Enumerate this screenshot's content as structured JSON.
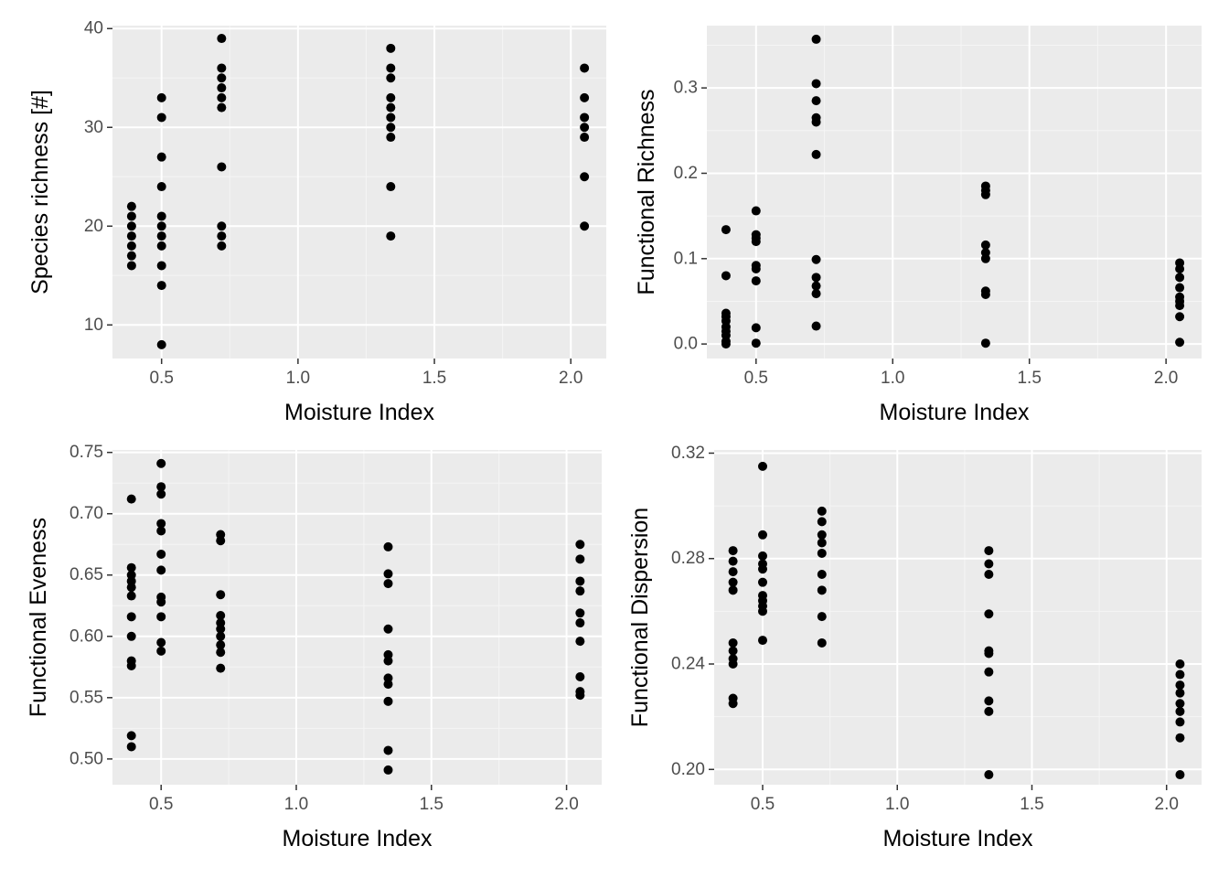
{
  "chart_data": [
    {
      "type": "scatter",
      "xlabel": "Moisture Index",
      "ylabel": "Species richness [#]",
      "xlim": [
        0.32,
        2.13
      ],
      "ylim": [
        6.6,
        40.3
      ],
      "x_ticks": [
        0.5,
        1.0,
        1.5,
        2.0
      ],
      "x_tick_labels": [
        "0.5",
        "1.0",
        "1.5",
        "2.0"
      ],
      "y_ticks": [
        10,
        20,
        30,
        40
      ],
      "y_tick_labels": [
        "10",
        "20",
        "30",
        "40"
      ],
      "grid": true,
      "points": [
        [
          0.39,
          22
        ],
        [
          0.39,
          21
        ],
        [
          0.39,
          20
        ],
        [
          0.39,
          19
        ],
        [
          0.39,
          18
        ],
        [
          0.39,
          17
        ],
        [
          0.39,
          16
        ],
        [
          0.5,
          33
        ],
        [
          0.5,
          31
        ],
        [
          0.5,
          27
        ],
        [
          0.5,
          24
        ],
        [
          0.5,
          21
        ],
        [
          0.5,
          20
        ],
        [
          0.5,
          19
        ],
        [
          0.5,
          18
        ],
        [
          0.5,
          16
        ],
        [
          0.5,
          14
        ],
        [
          0.5,
          8
        ],
        [
          0.72,
          39
        ],
        [
          0.72,
          36
        ],
        [
          0.72,
          35
        ],
        [
          0.72,
          34
        ],
        [
          0.72,
          33
        ],
        [
          0.72,
          32
        ],
        [
          0.72,
          26
        ],
        [
          0.72,
          20
        ],
        [
          0.72,
          19
        ],
        [
          0.72,
          18
        ],
        [
          1.34,
          38
        ],
        [
          1.34,
          36
        ],
        [
          1.34,
          35
        ],
        [
          1.34,
          33
        ],
        [
          1.34,
          32
        ],
        [
          1.34,
          31
        ],
        [
          1.34,
          30
        ],
        [
          1.34,
          29
        ],
        [
          1.34,
          24
        ],
        [
          1.34,
          19
        ],
        [
          2.05,
          36
        ],
        [
          2.05,
          33
        ],
        [
          2.05,
          31
        ],
        [
          2.05,
          30
        ],
        [
          2.05,
          29
        ],
        [
          2.05,
          25
        ],
        [
          2.05,
          20
        ]
      ]
    },
    {
      "type": "scatter",
      "xlabel": "Moisture Index",
      "ylabel": "Functional Richness",
      "xlim": [
        0.32,
        2.13
      ],
      "ylim": [
        -0.017,
        0.373
      ],
      "x_ticks": [
        0.5,
        1.0,
        1.5,
        2.0
      ],
      "x_tick_labels": [
        "0.5",
        "1.0",
        "1.5",
        "2.0"
      ],
      "y_ticks": [
        0.0,
        0.1,
        0.2,
        0.3
      ],
      "y_tick_labels": [
        "0.0",
        "0.1",
        "0.2",
        "0.3"
      ],
      "grid": true,
      "points": [
        [
          0.39,
          0.134
        ],
        [
          0.39,
          0.08
        ],
        [
          0.39,
          0.036
        ],
        [
          0.39,
          0.032
        ],
        [
          0.39,
          0.027
        ],
        [
          0.39,
          0.02
        ],
        [
          0.39,
          0.015
        ],
        [
          0.39,
          0.01
        ],
        [
          0.39,
          0.003
        ],
        [
          0.39,
          0.0
        ],
        [
          0.5,
          0.156
        ],
        [
          0.5,
          0.128
        ],
        [
          0.5,
          0.124
        ],
        [
          0.5,
          0.12
        ],
        [
          0.5,
          0.092
        ],
        [
          0.5,
          0.088
        ],
        [
          0.5,
          0.074
        ],
        [
          0.5,
          0.019
        ],
        [
          0.5,
          0.001
        ],
        [
          0.72,
          0.357
        ],
        [
          0.72,
          0.305
        ],
        [
          0.72,
          0.285
        ],
        [
          0.72,
          0.265
        ],
        [
          0.72,
          0.26
        ],
        [
          0.72,
          0.222
        ],
        [
          0.72,
          0.099
        ],
        [
          0.72,
          0.078
        ],
        [
          0.72,
          0.068
        ],
        [
          0.72,
          0.059
        ],
        [
          0.72,
          0.021
        ],
        [
          1.34,
          0.185
        ],
        [
          1.34,
          0.18
        ],
        [
          1.34,
          0.175
        ],
        [
          1.34,
          0.116
        ],
        [
          1.34,
          0.107
        ],
        [
          1.34,
          0.1
        ],
        [
          1.34,
          0.062
        ],
        [
          1.34,
          0.058
        ],
        [
          1.34,
          0.001
        ],
        [
          2.05,
          0.095
        ],
        [
          2.05,
          0.088
        ],
        [
          2.05,
          0.078
        ],
        [
          2.05,
          0.066
        ],
        [
          2.05,
          0.055
        ],
        [
          2.05,
          0.05
        ],
        [
          2.05,
          0.045
        ],
        [
          2.05,
          0.032
        ],
        [
          2.05,
          0.002
        ]
      ]
    },
    {
      "type": "scatter",
      "xlabel": "Moisture Index",
      "ylabel": "Functional Eveness",
      "xlim": [
        0.32,
        2.13
      ],
      "ylim": [
        0.479,
        0.752
      ],
      "x_ticks": [
        0.5,
        1.0,
        1.5,
        2.0
      ],
      "x_tick_labels": [
        "0.5",
        "1.0",
        "1.5",
        "2.0"
      ],
      "y_ticks": [
        0.5,
        0.55,
        0.6,
        0.65,
        0.7,
        0.75
      ],
      "y_tick_labels": [
        "0.50",
        "0.55",
        "0.60",
        "0.65",
        "0.70",
        "0.75"
      ],
      "grid": true,
      "points": [
        [
          0.39,
          0.712
        ],
        [
          0.39,
          0.656
        ],
        [
          0.39,
          0.65
        ],
        [
          0.39,
          0.645
        ],
        [
          0.39,
          0.64
        ],
        [
          0.39,
          0.633
        ],
        [
          0.39,
          0.616
        ],
        [
          0.39,
          0.6
        ],
        [
          0.39,
          0.58
        ],
        [
          0.39,
          0.576
        ],
        [
          0.39,
          0.519
        ],
        [
          0.39,
          0.51
        ],
        [
          0.5,
          0.741
        ],
        [
          0.5,
          0.722
        ],
        [
          0.5,
          0.716
        ],
        [
          0.5,
          0.692
        ],
        [
          0.5,
          0.686
        ],
        [
          0.5,
          0.667
        ],
        [
          0.5,
          0.654
        ],
        [
          0.5,
          0.632
        ],
        [
          0.5,
          0.628
        ],
        [
          0.5,
          0.616
        ],
        [
          0.5,
          0.595
        ],
        [
          0.5,
          0.588
        ],
        [
          0.72,
          0.683
        ],
        [
          0.72,
          0.678
        ],
        [
          0.72,
          0.634
        ],
        [
          0.72,
          0.617
        ],
        [
          0.72,
          0.611
        ],
        [
          0.72,
          0.606
        ],
        [
          0.72,
          0.6
        ],
        [
          0.72,
          0.593
        ],
        [
          0.72,
          0.587
        ],
        [
          0.72,
          0.574
        ],
        [
          1.34,
          0.673
        ],
        [
          1.34,
          0.651
        ],
        [
          1.34,
          0.643
        ],
        [
          1.34,
          0.606
        ],
        [
          1.34,
          0.585
        ],
        [
          1.34,
          0.58
        ],
        [
          1.34,
          0.566
        ],
        [
          1.34,
          0.561
        ],
        [
          1.34,
          0.547
        ],
        [
          1.34,
          0.507
        ],
        [
          1.34,
          0.491
        ],
        [
          2.05,
          0.675
        ],
        [
          2.05,
          0.663
        ],
        [
          2.05,
          0.645
        ],
        [
          2.05,
          0.637
        ],
        [
          2.05,
          0.619
        ],
        [
          2.05,
          0.611
        ],
        [
          2.05,
          0.596
        ],
        [
          2.05,
          0.567
        ],
        [
          2.05,
          0.555
        ],
        [
          2.05,
          0.552
        ]
      ]
    },
    {
      "type": "scatter",
      "xlabel": "Moisture Index",
      "ylabel": "Functional Dispersion",
      "xlim": [
        0.32,
        2.13
      ],
      "ylim": [
        0.1942,
        0.3212
      ],
      "x_ticks": [
        0.5,
        1.0,
        1.5,
        2.0
      ],
      "x_tick_labels": [
        "0.5",
        "1.0",
        "1.5",
        "2.0"
      ],
      "y_ticks": [
        0.2,
        0.24,
        0.28,
        0.32
      ],
      "y_tick_labels": [
        "0.20",
        "0.24",
        "0.28",
        "0.32"
      ],
      "grid": true,
      "points": [
        [
          0.39,
          0.283
        ],
        [
          0.39,
          0.279
        ],
        [
          0.39,
          0.275
        ],
        [
          0.39,
          0.271
        ],
        [
          0.39,
          0.268
        ],
        [
          0.39,
          0.248
        ],
        [
          0.39,
          0.245
        ],
        [
          0.39,
          0.242
        ],
        [
          0.39,
          0.24
        ],
        [
          0.39,
          0.227
        ],
        [
          0.39,
          0.225
        ],
        [
          0.5,
          0.315
        ],
        [
          0.5,
          0.289
        ],
        [
          0.5,
          0.281
        ],
        [
          0.5,
          0.278
        ],
        [
          0.5,
          0.276
        ],
        [
          0.5,
          0.271
        ],
        [
          0.5,
          0.266
        ],
        [
          0.5,
          0.264
        ],
        [
          0.5,
          0.262
        ],
        [
          0.5,
          0.26
        ],
        [
          0.5,
          0.249
        ],
        [
          0.72,
          0.298
        ],
        [
          0.72,
          0.294
        ],
        [
          0.72,
          0.289
        ],
        [
          0.72,
          0.286
        ],
        [
          0.72,
          0.282
        ],
        [
          0.72,
          0.274
        ],
        [
          0.72,
          0.268
        ],
        [
          0.72,
          0.258
        ],
        [
          0.72,
          0.248
        ],
        [
          1.34,
          0.283
        ],
        [
          1.34,
          0.278
        ],
        [
          1.34,
          0.274
        ],
        [
          1.34,
          0.259
        ],
        [
          1.34,
          0.245
        ],
        [
          1.34,
          0.244
        ],
        [
          1.34,
          0.237
        ],
        [
          1.34,
          0.226
        ],
        [
          1.34,
          0.222
        ],
        [
          1.34,
          0.198
        ],
        [
          2.05,
          0.24
        ],
        [
          2.05,
          0.236
        ],
        [
          2.05,
          0.232
        ],
        [
          2.05,
          0.229
        ],
        [
          2.05,
          0.225
        ],
        [
          2.05,
          0.222
        ],
        [
          2.05,
          0.218
        ],
        [
          2.05,
          0.212
        ],
        [
          2.05,
          0.198
        ]
      ]
    }
  ]
}
